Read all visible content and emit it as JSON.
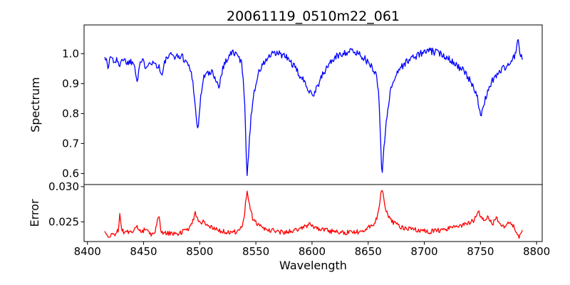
{
  "figure": {
    "background": "#ffffff",
    "axis_color": "#000000",
    "text_color": "#000000"
  },
  "chart_data": {
    "type": "line",
    "title": "20061119_0510m22_061",
    "xlabel": "Wavelength",
    "grid": false,
    "legend": null,
    "xlim": [
      8397,
      8805
    ],
    "xticks": [
      8400,
      8450,
      8500,
      8550,
      8600,
      8650,
      8700,
      8750,
      8800
    ],
    "xtick_labels": [
      "8400",
      "8450",
      "8500",
      "8550",
      "8600",
      "8650",
      "8700",
      "8750",
      "8800"
    ],
    "sample_step": 0.7,
    "panels": [
      {
        "name": "spectrum",
        "ylabel": "Spectrum",
        "color": "#0000ff",
        "ylim": [
          0.563,
          1.096
        ],
        "yticks": [
          0.6,
          0.7,
          0.8,
          0.9,
          1.0
        ],
        "ytick_labels": [
          "0.6",
          "0.7",
          "0.8",
          "0.9",
          "1.0"
        ],
        "noise": {
          "amplitude": 0.012,
          "seed": 1337
        },
        "points": [
          [
            8415.5,
            0.995
          ],
          [
            8417,
            0.975
          ],
          [
            8418.5,
            0.948
          ],
          [
            8420,
            0.99
          ],
          [
            8422,
            0.985
          ],
          [
            8424,
            0.972
          ],
          [
            8426,
            0.98
          ],
          [
            8428,
            0.955
          ],
          [
            8430,
            0.985
          ],
          [
            8433,
            0.978
          ],
          [
            8436,
            0.97
          ],
          [
            8439,
            0.975
          ],
          [
            8442,
            0.965
          ],
          [
            8444.5,
            0.906
          ],
          [
            8446.5,
            0.97
          ],
          [
            8449,
            0.975
          ],
          [
            8452,
            0.958
          ],
          [
            8455,
            0.975
          ],
          [
            8458,
            0.97
          ],
          [
            8461,
            0.965
          ],
          [
            8464,
            0.955
          ],
          [
            8466.5,
            0.924
          ],
          [
            8469,
            0.975
          ],
          [
            8472,
            0.99
          ],
          [
            8476,
            0.995
          ],
          [
            8480,
            0.99
          ],
          [
            8484,
            0.992
          ],
          [
            8487,
            0.978
          ],
          [
            8490,
            0.962
          ],
          [
            8493,
            0.93
          ],
          [
            8495.5,
            0.855
          ],
          [
            8497,
            0.775
          ],
          [
            8498.2,
            0.748
          ],
          [
            8499.5,
            0.79
          ],
          [
            8501,
            0.86
          ],
          [
            8503,
            0.91
          ],
          [
            8505,
            0.938
          ],
          [
            8508,
            0.93
          ],
          [
            8511,
            0.938
          ],
          [
            8514,
            0.92
          ],
          [
            8517,
            0.885
          ],
          [
            8519,
            0.93
          ],
          [
            8521,
            0.958
          ],
          [
            8524,
            0.98
          ],
          [
            8527,
            0.998
          ],
          [
            8530,
            1.005
          ],
          [
            8533,
            0.995
          ],
          [
            8535.5,
            0.985
          ],
          [
            8537.5,
            0.962
          ],
          [
            8539,
            0.91
          ],
          [
            8540.5,
            0.8
          ],
          [
            8541.6,
            0.63
          ],
          [
            8542.3,
            0.588
          ],
          [
            8543.2,
            0.64
          ],
          [
            8544.5,
            0.735
          ],
          [
            8546,
            0.8
          ],
          [
            8548,
            0.865
          ],
          [
            8550.5,
            0.91
          ],
          [
            8553,
            0.94
          ],
          [
            8556,
            0.962
          ],
          [
            8559,
            0.978
          ],
          [
            8562,
            0.99
          ],
          [
            8566,
            1.0
          ],
          [
            8570,
            1.0
          ],
          [
            8574,
            0.995
          ],
          [
            8578,
            0.985
          ],
          [
            8582,
            0.968
          ],
          [
            8586,
            0.945
          ],
          [
            8590,
            0.922
          ],
          [
            8594,
            0.9
          ],
          [
            8597,
            0.882
          ],
          [
            8600,
            0.868
          ],
          [
            8601.5,
            0.862
          ],
          [
            8603,
            0.878
          ],
          [
            8606,
            0.902
          ],
          [
            8609,
            0.925
          ],
          [
            8612,
            0.945
          ],
          [
            8615,
            0.965
          ],
          [
            8618,
            0.978
          ],
          [
            8622,
            0.99
          ],
          [
            8626,
            1.0
          ],
          [
            8630,
            1.005
          ],
          [
            8634,
            1.008
          ],
          [
            8638,
            1.005
          ],
          [
            8642,
            1.0
          ],
          [
            8646,
            0.988
          ],
          [
            8649,
            0.972
          ],
          [
            8652,
            0.96
          ],
          [
            8655,
            0.948
          ],
          [
            8657.5,
            0.925
          ],
          [
            8659.5,
            0.86
          ],
          [
            8661,
            0.72
          ],
          [
            8662.2,
            0.592
          ],
          [
            8663.3,
            0.645
          ],
          [
            8664.8,
            0.72
          ],
          [
            8666.5,
            0.79
          ],
          [
            8668.5,
            0.845
          ],
          [
            8671,
            0.892
          ],
          [
            8674,
            0.925
          ],
          [
            8677,
            0.945
          ],
          [
            8680,
            0.958
          ],
          [
            8683,
            0.968
          ],
          [
            8686,
            0.978
          ],
          [
            8690,
            0.988
          ],
          [
            8694,
            0.995
          ],
          [
            8698,
            1.002
          ],
          [
            8702,
            1.008
          ],
          [
            8706,
            1.008
          ],
          [
            8710,
            1.005
          ],
          [
            8714,
            1.0
          ],
          [
            8718,
            0.994
          ],
          [
            8722,
            0.985
          ],
          [
            8726,
            0.972
          ],
          [
            8730,
            0.958
          ],
          [
            8734,
            0.945
          ],
          [
            8738,
            0.925
          ],
          [
            8741,
            0.908
          ],
          [
            8744,
            0.89
          ],
          [
            8746.5,
            0.868
          ],
          [
            8748.5,
            0.825
          ],
          [
            8750.3,
            0.783
          ],
          [
            8751.8,
            0.805
          ],
          [
            8753.5,
            0.838
          ],
          [
            8756,
            0.872
          ],
          [
            8758.5,
            0.895
          ],
          [
            8761,
            0.912
          ],
          [
            8764,
            0.928
          ],
          [
            8767,
            0.94
          ],
          [
            8770,
            0.95
          ],
          [
            8773,
            0.958
          ],
          [
            8776,
            0.966
          ],
          [
            8779,
            0.982
          ],
          [
            8781.5,
            1.005
          ],
          [
            8783.3,
            1.048
          ],
          [
            8784.8,
            1.005
          ],
          [
            8786,
            0.988
          ],
          [
            8787.5,
            0.99
          ]
        ]
      },
      {
        "name": "error",
        "ylabel": "Error",
        "color": "#ff0000",
        "ylim": [
          0.0222,
          0.0303
        ],
        "yticks": [
          0.025,
          0.03
        ],
        "ytick_labels": [
          "0.025",
          "0.030"
        ],
        "noise": {
          "amplitude": 0.00035,
          "seed": 2024
        },
        "points": [
          [
            8415.5,
            0.0234
          ],
          [
            8417.5,
            0.023
          ],
          [
            8419,
            0.0227
          ],
          [
            8421,
            0.0233
          ],
          [
            8423,
            0.0231
          ],
          [
            8425.5,
            0.0234
          ],
          [
            8427.5,
            0.0238
          ],
          [
            8428.7,
            0.0263
          ],
          [
            8430,
            0.024
          ],
          [
            8432,
            0.0236
          ],
          [
            8435,
            0.0237
          ],
          [
            8438,
            0.0235
          ],
          [
            8441,
            0.0238
          ],
          [
            8444,
            0.0244
          ],
          [
            8446.5,
            0.0237
          ],
          [
            8449,
            0.0235
          ],
          [
            8451.5,
            0.0242
          ],
          [
            8454,
            0.0234
          ],
          [
            8457,
            0.0233
          ],
          [
            8460,
            0.0235
          ],
          [
            8463.5,
            0.026
          ],
          [
            8465.5,
            0.0237
          ],
          [
            8468,
            0.0234
          ],
          [
            8471,
            0.0233
          ],
          [
            8475,
            0.0234
          ],
          [
            8479,
            0.0233
          ],
          [
            8483,
            0.0235
          ],
          [
            8487,
            0.0238
          ],
          [
            8491,
            0.0242
          ],
          [
            8494,
            0.0252
          ],
          [
            8496,
            0.0263
          ],
          [
            8498,
            0.0255
          ],
          [
            8500.5,
            0.0247
          ],
          [
            8503,
            0.0254
          ],
          [
            8505.5,
            0.0247
          ],
          [
            8508,
            0.0245
          ],
          [
            8511,
            0.0242
          ],
          [
            8514,
            0.024
          ],
          [
            8517,
            0.0238
          ],
          [
            8521,
            0.0236
          ],
          [
            8526,
            0.0234
          ],
          [
            8530,
            0.0235
          ],
          [
            8534,
            0.0237
          ],
          [
            8537,
            0.0241
          ],
          [
            8539.5,
            0.0252
          ],
          [
            8541,
            0.028
          ],
          [
            8542.2,
            0.0297
          ],
          [
            8543.5,
            0.0283
          ],
          [
            8545,
            0.0266
          ],
          [
            8547,
            0.0256
          ],
          [
            8549.5,
            0.0249
          ],
          [
            8552,
            0.0246
          ],
          [
            8555,
            0.0243
          ],
          [
            8558,
            0.0241
          ],
          [
            8562,
            0.0239
          ],
          [
            8566,
            0.0237
          ],
          [
            8570,
            0.0236
          ],
          [
            8575,
            0.0235
          ],
          [
            8580,
            0.0236
          ],
          [
            8585,
            0.0238
          ],
          [
            8590,
            0.024
          ],
          [
            8594,
            0.0243
          ],
          [
            8597.5,
            0.0246
          ],
          [
            8600,
            0.0244
          ],
          [
            8603,
            0.0242
          ],
          [
            8607,
            0.024
          ],
          [
            8611,
            0.0239
          ],
          [
            8616,
            0.0237
          ],
          [
            8621,
            0.0236
          ],
          [
            8626,
            0.0235
          ],
          [
            8631,
            0.0235
          ],
          [
            8636,
            0.0235
          ],
          [
            8641,
            0.0236
          ],
          [
            8645,
            0.0238
          ],
          [
            8649,
            0.024
          ],
          [
            8652.5,
            0.0244
          ],
          [
            8655.5,
            0.0249
          ],
          [
            8658,
            0.0257
          ],
          [
            8660,
            0.0272
          ],
          [
            8661.8,
            0.0296
          ],
          [
            8663.5,
            0.0288
          ],
          [
            8665,
            0.0272
          ],
          [
            8667,
            0.0261
          ],
          [
            8669.5,
            0.0253
          ],
          [
            8672,
            0.0249
          ],
          [
            8675,
            0.0246
          ],
          [
            8678,
            0.0243
          ],
          [
            8681,
            0.0242
          ],
          [
            8685,
            0.024
          ],
          [
            8689,
            0.0239
          ],
          [
            8694,
            0.0238
          ],
          [
            8699,
            0.0237
          ],
          [
            8704,
            0.0236
          ],
          [
            8709,
            0.0237
          ],
          [
            8714,
            0.0238
          ],
          [
            8719,
            0.024
          ],
          [
            8724,
            0.0241
          ],
          [
            8729,
            0.0243
          ],
          [
            8734,
            0.0245
          ],
          [
            8739,
            0.0248
          ],
          [
            8743,
            0.0251
          ],
          [
            8746,
            0.0256
          ],
          [
            8748.7,
            0.0264
          ],
          [
            8751,
            0.0257
          ],
          [
            8753.5,
            0.0252
          ],
          [
            8756,
            0.0259
          ],
          [
            8758.5,
            0.0253
          ],
          [
            8761,
            0.0247
          ],
          [
            8764,
            0.0256
          ],
          [
            8766.5,
            0.0248
          ],
          [
            8769,
            0.0244
          ],
          [
            8772,
            0.0243
          ],
          [
            8774.5,
            0.0247
          ],
          [
            8776.5,
            0.0253
          ],
          [
            8778.5,
            0.0245
          ],
          [
            8780.5,
            0.0241
          ],
          [
            8782.5,
            0.0236
          ],
          [
            8784.5,
            0.0228
          ],
          [
            8786,
            0.0237
          ],
          [
            8787.5,
            0.0235
          ]
        ]
      }
    ]
  }
}
